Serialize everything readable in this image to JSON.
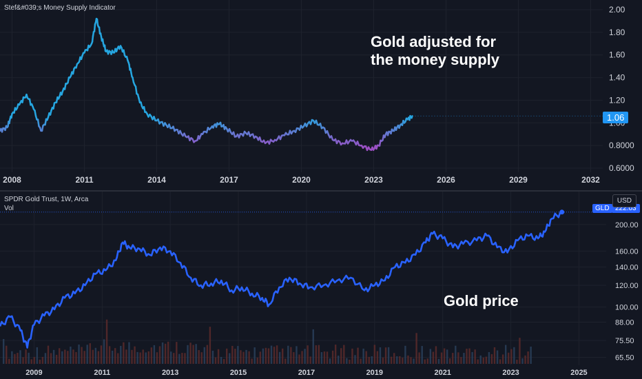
{
  "top_pane": {
    "title": "Stef&#039;s Money Supply Indicator",
    "annotation_line1": "Gold adjusted for",
    "annotation_line2": "the money supply",
    "last_value": "1.06"
  },
  "bottom_pane": {
    "symbol_title": "SPDR Gold Trust, 1W, Arca",
    "volume_label": "Vol",
    "annotation": "Gold price",
    "ticker_badge": "GLD",
    "last_value": "222.03",
    "currency_button": "USD"
  },
  "colors": {
    "background": "#131722",
    "grid": "#1e222d",
    "indicator_high": "#26a6e0",
    "indicator_low": "#9c4fc4",
    "price_line": "#2962ff",
    "volume": "#5b2a2a",
    "badge_top": "#2196f3",
    "badge_bottom": "#2962ff"
  },
  "chart_data": [
    {
      "type": "line",
      "xlabel": "",
      "ylabel": "",
      "x_ticks": [
        "2008",
        "2011",
        "2014",
        "2017",
        "2020",
        "2023",
        "2026",
        "2029",
        "2032"
      ],
      "y_ticks": [
        "2.00",
        "1.80",
        "1.60",
        "1.40",
        "1.20",
        "1.00",
        "0.8000",
        "0.6000"
      ],
      "xlim": [
        2007.5,
        2032.5
      ],
      "ylim": [
        0.6,
        2.0
      ],
      "series": [
        {
          "x": [
            2007.5,
            2007.8,
            2008.0,
            2008.3,
            2008.6,
            2008.9,
            2009.2,
            2009.5,
            2009.8,
            2010.1,
            2010.4,
            2010.7,
            2011.0,
            2011.3,
            2011.5,
            2011.7,
            2011.9,
            2012.2,
            2012.5,
            2012.8,
            2013.0,
            2013.3,
            2013.6,
            2014.0,
            2014.4,
            2014.8,
            2015.2,
            2015.6,
            2015.9,
            2016.3,
            2016.6,
            2016.9,
            2017.3,
            2017.7,
            2018.1,
            2018.5,
            2018.9,
            2019.3,
            2019.7,
            2020.1,
            2020.5,
            2020.9,
            2021.3,
            2021.7,
            2022.1,
            2022.5,
            2022.9,
            2023.2,
            2023.5,
            2023.8,
            2024.1,
            2024.4,
            2024.6
          ],
          "values": [
            0.93,
            0.96,
            1.08,
            1.16,
            1.25,
            1.12,
            0.93,
            1.05,
            1.18,
            1.28,
            1.4,
            1.52,
            1.62,
            1.7,
            1.92,
            1.76,
            1.63,
            1.62,
            1.68,
            1.55,
            1.4,
            1.18,
            1.08,
            1.02,
            0.98,
            0.94,
            0.88,
            0.84,
            0.9,
            0.97,
            0.99,
            0.95,
            0.88,
            0.91,
            0.88,
            0.82,
            0.85,
            0.89,
            0.93,
            0.97,
            1.02,
            0.96,
            0.85,
            0.82,
            0.84,
            0.8,
            0.76,
            0.8,
            0.9,
            0.93,
            0.98,
            1.03,
            1.06
          ]
        }
      ]
    },
    {
      "type": "line",
      "xlabel": "",
      "ylabel": "",
      "x_ticks": [
        "2009",
        "2011",
        "2013",
        "2015",
        "2017",
        "2019",
        "2021",
        "2023",
        "2025"
      ],
      "y_ticks": [
        "200.00",
        "160.00",
        "140.00",
        "120.00",
        "100.00",
        "88.00",
        "75.50",
        "65.50"
      ],
      "xlim": [
        2008.0,
        2025.8
      ],
      "ylim": [
        62.0,
        235.0
      ],
      "series": [
        {
          "name": "GLD",
          "x": [
            2008.0,
            2008.3,
            2008.6,
            2008.8,
            2009.0,
            2009.3,
            2009.6,
            2009.9,
            2010.2,
            2010.5,
            2010.8,
            2011.1,
            2011.4,
            2011.6,
            2011.8,
            2012.1,
            2012.4,
            2012.7,
            2013.0,
            2013.3,
            2013.6,
            2013.9,
            2014.2,
            2014.5,
            2014.8,
            2015.1,
            2015.4,
            2015.7,
            2015.9,
            2016.2,
            2016.5,
            2016.8,
            2017.1,
            2017.5,
            2017.9,
            2018.3,
            2018.7,
            2019.0,
            2019.3,
            2019.6,
            2019.9,
            2020.2,
            2020.5,
            2020.7,
            2021.0,
            2021.3,
            2021.6,
            2022.0,
            2022.3,
            2022.6,
            2022.9,
            2023.2,
            2023.5,
            2023.8,
            2024.0,
            2024.2,
            2024.5
          ],
          "values": [
            85,
            92,
            82,
            71,
            86,
            93,
            98,
            108,
            112,
            120,
            132,
            136,
            148,
            172,
            165,
            163,
            155,
            165,
            160,
            145,
            128,
            120,
            122,
            125,
            115,
            118,
            112,
            108,
            102,
            118,
            128,
            122,
            118,
            120,
            125,
            128,
            115,
            120,
            125,
            140,
            145,
            155,
            172,
            185,
            178,
            165,
            170,
            175,
            182,
            165,
            158,
            175,
            182,
            178,
            188,
            210,
            222.03
          ]
        },
        {
          "name": "Vol",
          "type": "bar",
          "values": []
        }
      ]
    }
  ]
}
